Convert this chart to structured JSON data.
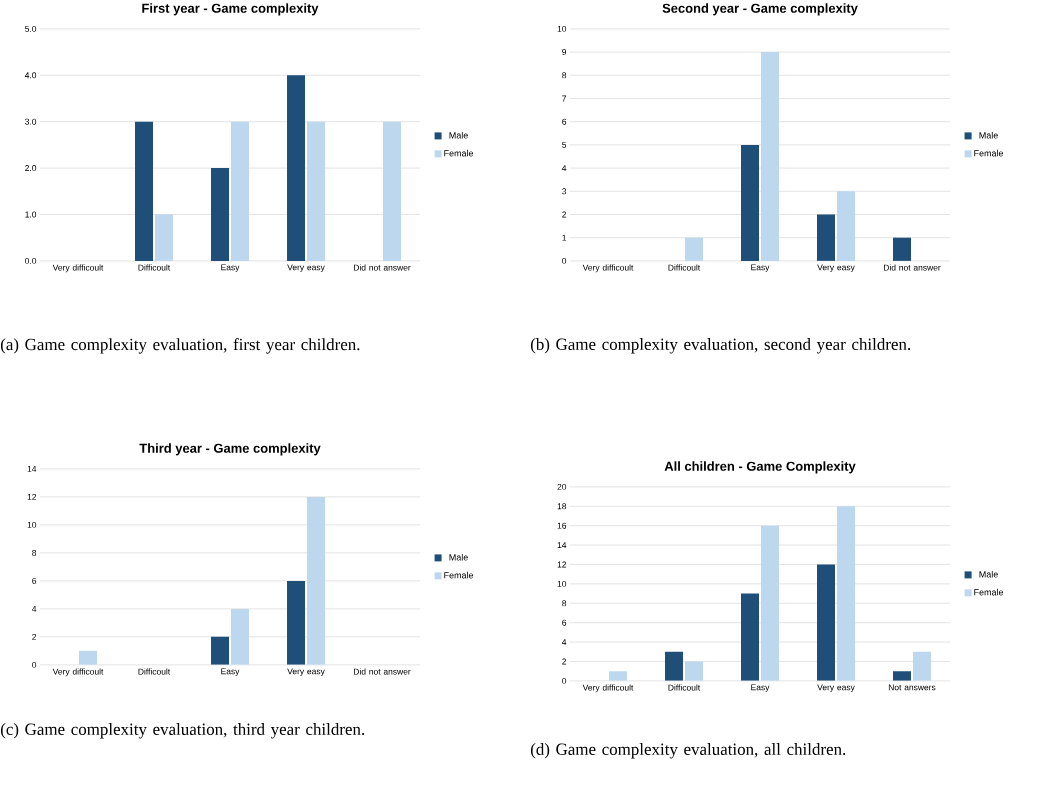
{
  "chart_data": [
    {
      "type": "bar",
      "title": "First year - Game complexity",
      "categories": [
        "Very difficoult",
        "Difficoult",
        "Easy",
        "Very easy",
        "Did not answer"
      ],
      "series": [
        {
          "name": "Male",
          "color": "#1f4e79",
          "values": [
            0,
            3,
            2,
            4,
            0
          ]
        },
        {
          "name": "Female",
          "color": "#bdd7ee",
          "values": [
            0,
            1,
            3,
            3,
            3
          ]
        }
      ],
      "ylim": [
        0,
        5
      ],
      "yticks": [
        {
          "value": 0,
          "label": "0.0"
        },
        {
          "value": 1,
          "label": "1.0"
        },
        {
          "value": 2,
          "label": "2.0"
        },
        {
          "value": 3,
          "label": "3.0"
        },
        {
          "value": 4,
          "label": "4.0"
        },
        {
          "value": 5,
          "label": "5.0"
        }
      ],
      "grid": "y",
      "legend": "right",
      "annotations": [
        "(a) Game complexity evaluation, first year children."
      ]
    },
    {
      "type": "bar",
      "title": "Second year - Game complexity",
      "categories": [
        "Very difficoult",
        "Difficoult",
        "Easy",
        "Very easy",
        "Did not answer"
      ],
      "series": [
        {
          "name": "Male",
          "color": "#1f4e79",
          "values": [
            0,
            0,
            5,
            2,
            1
          ]
        },
        {
          "name": "Female",
          "color": "#bdd7ee",
          "values": [
            0,
            1,
            9,
            3,
            0
          ]
        }
      ],
      "ylim": [
        0,
        10
      ],
      "yticks": [
        0,
        1,
        2,
        3,
        4,
        5,
        6,
        7,
        8,
        9,
        10
      ],
      "grid": "y",
      "legend": "right",
      "annotations": [
        "(b) Game complexity evaluation, second year children."
      ]
    },
    {
      "type": "bar",
      "title": "Third year - Game complexity",
      "categories": [
        "Very difficoult",
        "Difficoult",
        "Easy",
        "Very easy",
        "Did not answer"
      ],
      "series": [
        {
          "name": "Male",
          "color": "#1f4e79",
          "values": [
            0,
            0,
            2,
            6,
            0
          ]
        },
        {
          "name": "Female",
          "color": "#bdd7ee",
          "values": [
            1,
            0,
            4,
            12,
            0
          ]
        }
      ],
      "ylim": [
        0,
        14
      ],
      "yticks": [
        0,
        2,
        4,
        6,
        8,
        10,
        12,
        14
      ],
      "grid": "y",
      "legend": "right",
      "annotations": [
        "(c) Game complexity evaluation, third year children."
      ]
    },
    {
      "type": "bar",
      "title": "All children - Game Complexity",
      "categories": [
        "Very difficoult",
        "Difficoult",
        "Easy",
        "Very easy",
        "Not answers"
      ],
      "series": [
        {
          "name": "Male",
          "color": "#1f4e79",
          "values": [
            0,
            3,
            9,
            12,
            1
          ]
        },
        {
          "name": "Female",
          "color": "#bdd7ee",
          "values": [
            1,
            2,
            16,
            18,
            3
          ]
        }
      ],
      "ylim": [
        0,
        20
      ],
      "yticks": [
        0,
        2,
        4,
        6,
        8,
        10,
        12,
        14,
        16,
        18,
        20
      ],
      "grid": "y",
      "legend": "right",
      "annotations": [
        "(d) Game complexity evaluation, all children."
      ]
    }
  ]
}
